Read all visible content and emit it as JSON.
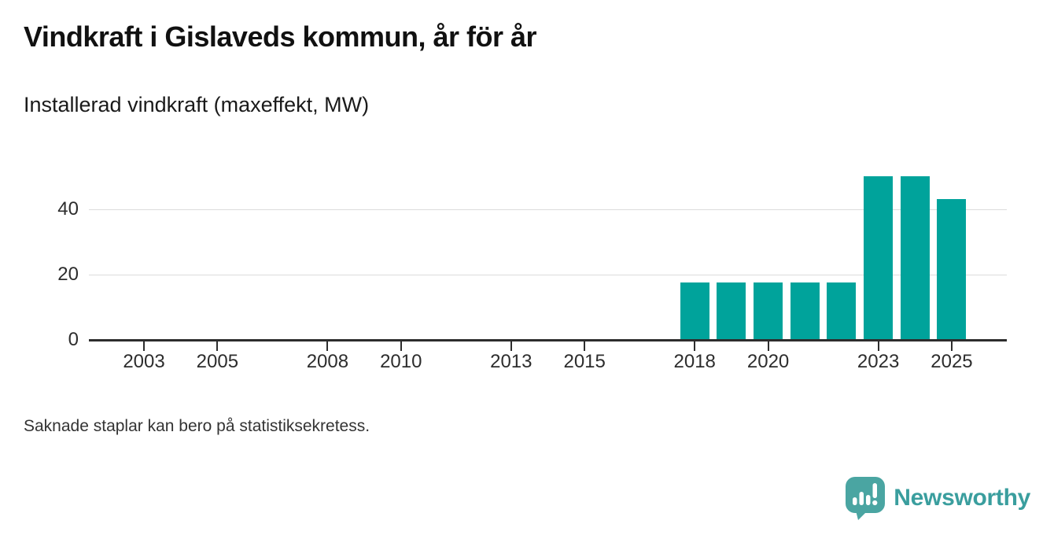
{
  "header": {
    "title": "Vindkraft i Gislaveds kommun, år för år",
    "subtitle": "Installerad vindkraft (maxeffekt, MW)"
  },
  "footer": {
    "note": "Saknade staplar kan bero på statistiksekretess.",
    "brand_name": "Newsworthy"
  },
  "colors": {
    "bar": "#00a39b",
    "axis": "#2d2d2d",
    "grid": "#dcdcdc",
    "logo_bubble": "#4aa5a2",
    "logo_text": "#3a9e9e"
  },
  "chart_data": {
    "type": "bar",
    "title": "Vindkraft i Gislaveds kommun, år för år",
    "subtitle": "Installerad vindkraft (maxeffekt, MW)",
    "ylabel": "MW",
    "xlabel": "",
    "x_domain": [
      2002,
      2026
    ],
    "xticks": [
      2003,
      2005,
      2008,
      2010,
      2013,
      2015,
      2018,
      2020,
      2023,
      2025
    ],
    "yticks": [
      0,
      20,
      40
    ],
    "ylim": [
      0,
      55.5
    ],
    "grid": "horizontal",
    "legend": "none",
    "points": [
      {
        "year": 2018,
        "value": 17.6
      },
      {
        "year": 2019,
        "value": 17.6
      },
      {
        "year": 2020,
        "value": 17.6
      },
      {
        "year": 2021,
        "value": 17.6
      },
      {
        "year": 2022,
        "value": 17.6
      },
      {
        "year": 2023,
        "value": 50.3
      },
      {
        "year": 2024,
        "value": 50.3
      },
      {
        "year": 2025,
        "value": 43.1
      }
    ],
    "missing_bars_note": "Saknade staplar kan bero på statistiksekretess."
  }
}
